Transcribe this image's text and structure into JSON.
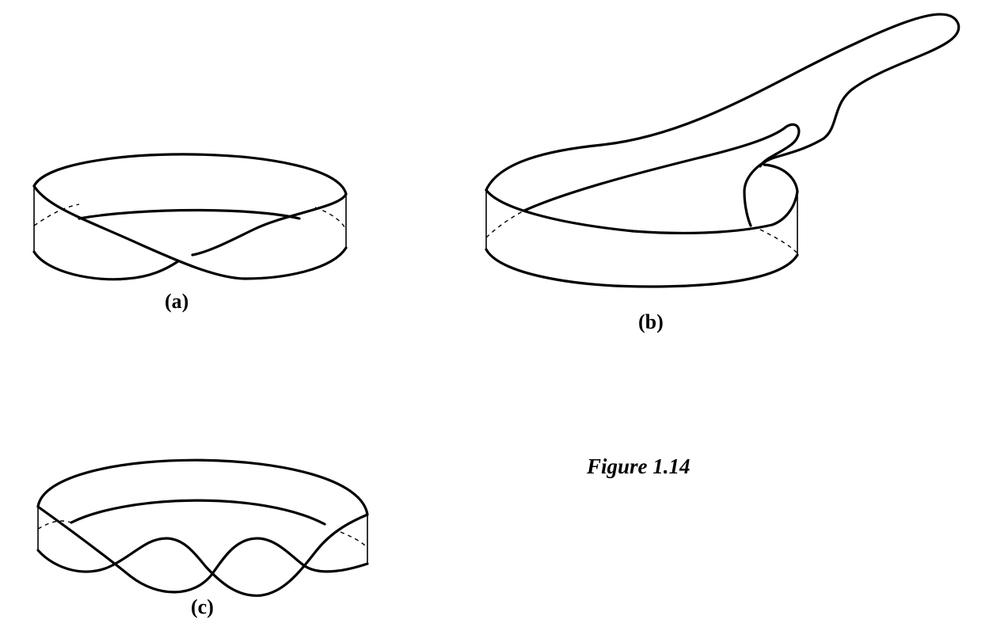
{
  "figure": {
    "caption": "Figure 1.14",
    "panels": [
      {
        "label": "(a)"
      },
      {
        "label": "(b)"
      },
      {
        "label": "(c)"
      }
    ]
  },
  "colors": {
    "ink": "#000000",
    "paper": "#ffffff"
  }
}
